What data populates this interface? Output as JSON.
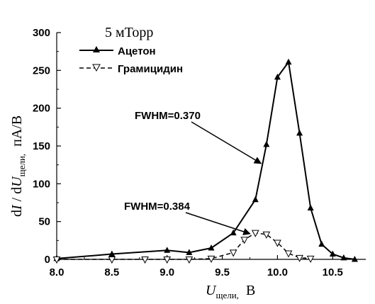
{
  "chart_data": {
    "type": "line",
    "title": "5 мТорр",
    "xlabel": {
      "main": "U",
      "sub": "щели,",
      "unit": "В"
    },
    "ylabel": {
      "pre": "d",
      "i": "I",
      "mid": " / d",
      "u": "U",
      "sub": "щели,",
      "unit": "пА/В"
    },
    "xlim": [
      8.0,
      10.8
    ],
    "ylim": [
      0,
      300
    ],
    "x_ticks": [
      8.0,
      8.5,
      9.0,
      9.5,
      10.0,
      10.5
    ],
    "x_tick_labels": [
      "8.0",
      "8.5",
      "9.0",
      "9.5",
      "10.0",
      "10.5"
    ],
    "y_ticks": [
      0,
      50,
      100,
      150,
      200,
      250,
      300
    ],
    "y_tick_labels": [
      "0",
      "50",
      "100",
      "150",
      "200",
      "250",
      "300"
    ],
    "grid": false,
    "legend_position": "top-left",
    "series": [
      {
        "name": "Ацетон",
        "marker": "triangle-up-filled",
        "line": "solid",
        "color": "#000000",
        "x": [
          8.0,
          8.5,
          9.0,
          9.2,
          9.4,
          9.6,
          9.8,
          9.9,
          10.0,
          10.1,
          10.2,
          10.3,
          10.4,
          10.5,
          10.6,
          10.7
        ],
        "y": [
          1,
          7,
          12,
          9,
          15,
          35,
          79,
          152,
          241,
          261,
          167,
          68,
          20,
          7,
          2,
          0
        ]
      },
      {
        "name": "Грамицидин",
        "marker": "triangle-down-open",
        "line": "dashed",
        "color": "#000000",
        "x": [
          8.0,
          8.5,
          8.8,
          9.0,
          9.2,
          9.4,
          9.6,
          9.7,
          9.8,
          9.9,
          10.0,
          10.1,
          10.2,
          10.3
        ],
        "y": [
          0,
          0,
          0,
          0,
          0,
          1,
          9,
          26,
          35,
          33,
          22,
          8,
          2,
          1
        ]
      }
    ],
    "annotations": [
      {
        "text": "FWHM=0.370",
        "target_x": 9.89,
        "target_y": 125
      },
      {
        "text": "FWHM=0.384",
        "target_x": 9.79,
        "target_y": 32
      }
    ]
  }
}
